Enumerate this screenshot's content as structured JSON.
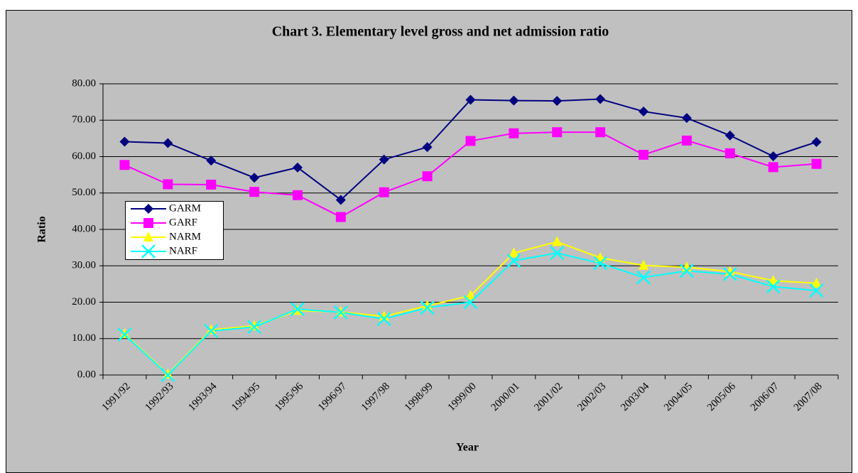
{
  "chart_data": {
    "type": "line",
    "title": "Chart 3. Elementary level gross and net admission ratio",
    "x_label": "Year",
    "y_label": "Ratio",
    "categories": [
      "1991/92",
      "1992/93",
      "1993/94",
      "1994/95",
      "1995/96",
      "1996/97",
      "1997/98",
      "1998/99",
      "1999/00",
      "2000/01",
      "2001/02",
      "2002/03",
      "2003/04",
      "2004/05",
      "2005/06",
      "2006/07",
      "2007/08"
    ],
    "series": [
      {
        "name": "GARM",
        "color": "#000080",
        "marker": "diamond",
        "values": [
          64.1,
          63.7,
          58.9,
          54.2,
          57.0,
          48.1,
          59.2,
          62.6,
          75.6,
          75.4,
          75.3,
          75.8,
          72.4,
          70.6,
          65.8,
          60.1,
          64.0
        ]
      },
      {
        "name": "GARF",
        "color": "#ff00ff",
        "marker": "square",
        "values": [
          57.7,
          52.4,
          52.3,
          50.3,
          49.4,
          43.4,
          50.2,
          54.6,
          64.3,
          66.4,
          66.7,
          66.7,
          60.5,
          64.4,
          60.9,
          57.1,
          58.0
        ]
      },
      {
        "name": "NARM",
        "color": "#ffff00",
        "marker": "triangle",
        "values": [
          11.3,
          0.2,
          12.4,
          13.5,
          17.7,
          17.3,
          16.1,
          19.0,
          21.8,
          33.5,
          36.6,
          32.2,
          30.1,
          29.6,
          28.4,
          25.9,
          25.2
        ]
      },
      {
        "name": "NARF",
        "color": "#00ffff",
        "marker": "x",
        "values": [
          11.1,
          0.0,
          12.1,
          13.2,
          18.1,
          17.2,
          15.4,
          18.5,
          20.0,
          31.4,
          33.5,
          30.7,
          26.8,
          28.6,
          27.7,
          24.3,
          23.2
        ]
      }
    ],
    "ylim": [
      0,
      80
    ],
    "yticks": [
      {
        "value": 0,
        "label": "0.00"
      },
      {
        "value": 10,
        "label": "10.00"
      },
      {
        "value": 20,
        "label": "20.00"
      },
      {
        "value": 30,
        "label": "30.00"
      },
      {
        "value": 40,
        "label": "40.00"
      },
      {
        "value": 50,
        "label": "50.00"
      },
      {
        "value": 60,
        "label": "60.00"
      },
      {
        "value": 70,
        "label": "70.00"
      },
      {
        "value": 80,
        "label": "80.00"
      }
    ],
    "grid": true
  }
}
